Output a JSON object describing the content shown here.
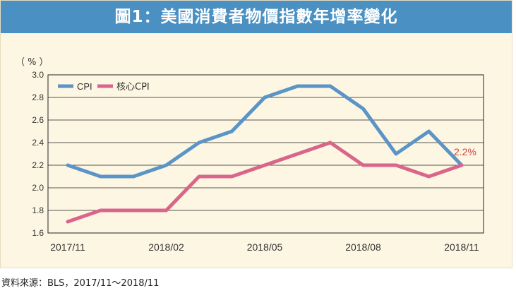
{
  "title": "圖1：美國消費者物價指數年增率變化",
  "source": "資料來源：BLS，2017/11～2018/11",
  "colors": {
    "title_bg": "#4a90c2",
    "panel_bg": "#fdf6e3",
    "cpi": "#5b94c6",
    "core": "#d9668a",
    "annotation": "#d04040"
  },
  "chart_data": {
    "type": "line",
    "unit_label": "（ % ）",
    "x": [
      "2017/11",
      "2017/12",
      "2018/01",
      "2018/02",
      "2018/03",
      "2018/04",
      "2018/05",
      "2018/06",
      "2018/07",
      "2018/08",
      "2018/09",
      "2018/10",
      "2018/11"
    ],
    "x_tick_labels": [
      "2017/11",
      "2018/02",
      "2018/05",
      "2018/08",
      "2018/11"
    ],
    "x_tick_index": [
      0,
      3,
      6,
      9,
      12
    ],
    "ylim": [
      1.6,
      3.0
    ],
    "y_ticks": [
      "1.6",
      "1.8",
      "2.0",
      "2.2",
      "2.4",
      "2.6",
      "2.8",
      "3.0"
    ],
    "grid": true,
    "legend_position": "top-left",
    "series": [
      {
        "name": "CPI",
        "values": [
          2.2,
          2.1,
          2.1,
          2.2,
          2.4,
          2.5,
          2.8,
          2.9,
          2.9,
          2.7,
          2.3,
          2.5,
          2.2
        ]
      },
      {
        "name": "核心CPI",
        "values": [
          1.7,
          1.8,
          1.8,
          1.8,
          2.1,
          2.1,
          2.2,
          2.3,
          2.4,
          2.2,
          2.2,
          2.1,
          2.2
        ]
      }
    ],
    "annotation": "2.2%"
  }
}
